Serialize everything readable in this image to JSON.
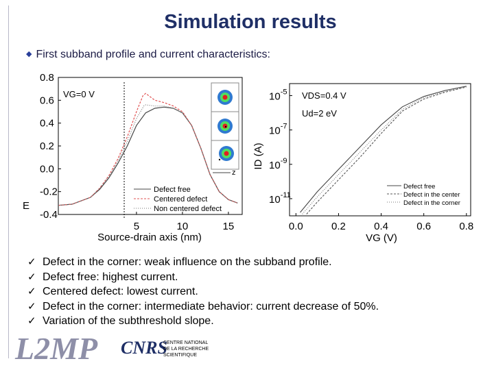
{
  "slide": {
    "title": "Simulation results",
    "subtitle": "First subband profile and current characteristics:"
  },
  "colors": {
    "title": "#1f2f66",
    "defect_free": "#444444",
    "centered": "#e05050",
    "non_centered": "#777777"
  },
  "chart_data": [
    {
      "type": "line",
      "xlabel": "Source-drain axis (nm)",
      "ylabel": "E",
      "xlim": [
        -3.5,
        16.5
      ],
      "ylim": [
        -0.4,
        0.8
      ],
      "xticks": [
        "5",
        "10",
        "15"
      ],
      "yticks": [
        "0.8",
        "0.6",
        "0.4",
        "0.2",
        "0.0",
        "-0.2",
        "-0.4"
      ],
      "annotation": "VG=0 V",
      "inset_axis_label": "z",
      "series": [
        {
          "name": "Defect free",
          "style": "solid",
          "x": [
            -3.5,
            -2,
            0,
            1,
            2,
            3,
            4,
            5,
            6,
            7,
            8,
            9,
            10,
            11,
            12,
            13,
            14,
            15,
            16
          ],
          "y": [
            -0.32,
            -0.31,
            -0.25,
            -0.18,
            -0.08,
            0.05,
            0.2,
            0.38,
            0.49,
            0.53,
            0.54,
            0.53,
            0.49,
            0.38,
            0.18,
            -0.05,
            -0.2,
            -0.27,
            -0.3
          ]
        },
        {
          "name": "Centered defect",
          "style": "dashed",
          "x": [
            -3.5,
            -2,
            0,
            1,
            2,
            3,
            4,
            5,
            5.7,
            6,
            7,
            8,
            9,
            10,
            11,
            12,
            13,
            14,
            15,
            16
          ],
          "y": [
            -0.32,
            -0.31,
            -0.25,
            -0.17,
            -0.06,
            0.09,
            0.28,
            0.5,
            0.64,
            0.66,
            0.6,
            0.58,
            0.55,
            0.5,
            0.38,
            0.18,
            -0.05,
            -0.2,
            -0.27,
            -0.3
          ]
        },
        {
          "name": "Non centered defect",
          "style": "dotted",
          "x": [
            -3.5,
            -2,
            0,
            1,
            2,
            3,
            4,
            5,
            5.8,
            6,
            7,
            8,
            9,
            10,
            11,
            12,
            13,
            14,
            15,
            16
          ],
          "y": [
            -0.32,
            -0.31,
            -0.25,
            -0.17,
            -0.07,
            0.07,
            0.24,
            0.44,
            0.55,
            0.56,
            0.55,
            0.55,
            0.53,
            0.49,
            0.38,
            0.18,
            -0.05,
            -0.2,
            -0.27,
            -0.3
          ]
        }
      ]
    },
    {
      "type": "line",
      "xlabel": "VG (V)",
      "ylabel": "ID (A)",
      "xlim": [
        -0.03,
        0.82
      ],
      "ylim": [
        -12,
        -4.3
      ],
      "log_y": true,
      "xticks": [
        "0.0",
        "0.2",
        "0.4",
        "0.6",
        "0.8"
      ],
      "yticks": [
        "10-5",
        "10-7",
        "10-9",
        "10-11"
      ],
      "annotations": [
        "VDS=0.4 V",
        "Ud=2 eV"
      ],
      "series": [
        {
          "name": "Defect free",
          "style": "solid",
          "x": [
            0.02,
            0.1,
            0.2,
            0.3,
            0.4,
            0.5,
            0.6,
            0.7,
            0.8
          ],
          "y": [
            -11.8,
            -10.6,
            -9.3,
            -8.0,
            -6.7,
            -5.65,
            -5.05,
            -4.7,
            -4.45
          ]
        },
        {
          "name": "Defect in the center",
          "style": "dashed",
          "x": [
            0.05,
            0.1,
            0.2,
            0.3,
            0.4,
            0.5,
            0.6,
            0.7,
            0.8
          ],
          "y": [
            -11.9,
            -11.2,
            -9.9,
            -8.6,
            -7.2,
            -5.9,
            -5.2,
            -4.8,
            -4.5
          ]
        },
        {
          "name": "Defect in the corner",
          "style": "dotted",
          "x": [
            0.03,
            0.1,
            0.2,
            0.3,
            0.4,
            0.5,
            0.6,
            0.7,
            0.8
          ],
          "y": [
            -11.9,
            -10.9,
            -9.6,
            -8.3,
            -7.0,
            -5.8,
            -5.12,
            -4.75,
            -4.47
          ]
        }
      ]
    }
  ],
  "conclusions": [
    "Defect in the corner: weak influence on the subband profile.",
    "Defect free: highest current.",
    "Centered defect: lowest current.",
    "Defect in the corner: intermediate behavior: current decrease of 50%.",
    "Variation of the subthreshold slope."
  ],
  "check_glyph": "✓",
  "logos": {
    "l2mp": "L2MP",
    "cnrs": "CNRS",
    "cnrs_text": [
      "CENTRE NATIONAL",
      "DE LA RECHERCHE",
      "SCIENTIFIQUE"
    ]
  }
}
